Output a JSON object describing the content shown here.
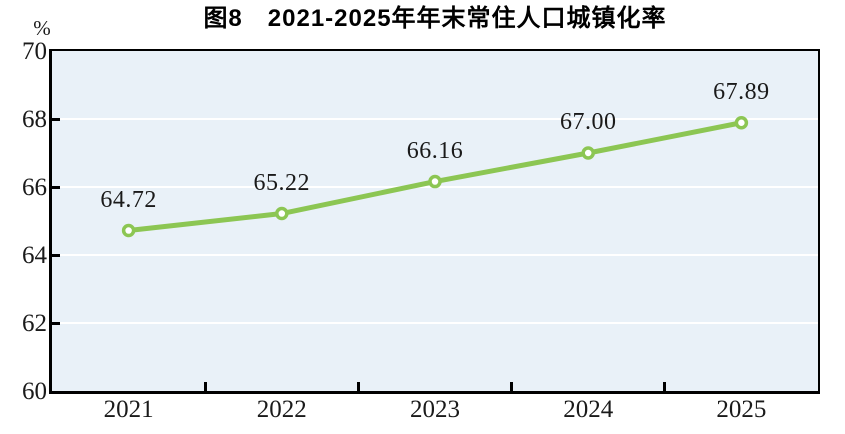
{
  "title": "图8　2021-2025年年末常住人口城镇化率",
  "y_axis_unit": "%",
  "colors": {
    "line": "#8CC653",
    "marker_fill": "#FFFFFF",
    "plot_background": "#E9F1F8",
    "gridline": "#FFFFFF",
    "axis": "#000000",
    "text": "#1A1A1A",
    "title_text": "#000000"
  },
  "chart_data": {
    "type": "line",
    "title": "图8　2021-2025年年末常住人口城镇化率",
    "categories": [
      "2021",
      "2022",
      "2023",
      "2024",
      "2025"
    ],
    "series": [
      {
        "values": [
          64.72,
          65.22,
          66.16,
          67.0,
          67.89
        ],
        "labels": [
          "64.72",
          "65.22",
          "66.16",
          "67.00",
          "67.89"
        ]
      }
    ],
    "ylabel": "%",
    "ylim": [
      60,
      70
    ],
    "yticks": [
      60,
      62,
      64,
      66,
      68,
      70
    ],
    "grid": true,
    "legend": false,
    "marker": "circle"
  }
}
